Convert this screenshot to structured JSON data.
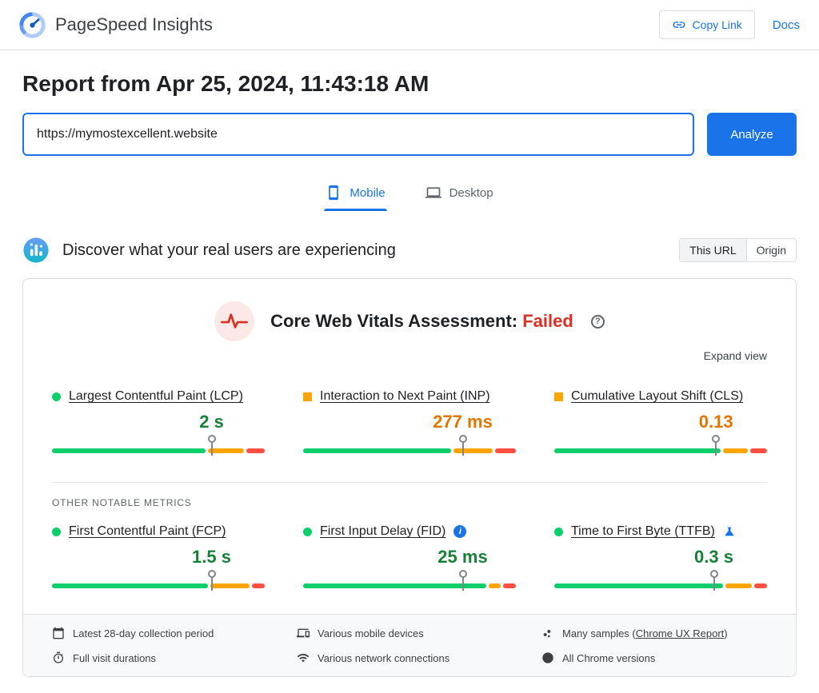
{
  "header": {
    "app_title": "PageSpeed Insights",
    "copy_link": "Copy Link",
    "docs": "Docs"
  },
  "report": {
    "heading": "Report from Apr 25, 2024, 11:43:18 AM",
    "url": "https://mymostexcellent.website",
    "analyze": "Analyze"
  },
  "tabs": {
    "mobile": "Mobile",
    "desktop": "Desktop"
  },
  "field": {
    "heading": "Discover what your real users are experiencing",
    "scope": {
      "this_url": "This URL",
      "origin": "Origin"
    },
    "assessment_title": "Core Web Vitals Assessment:",
    "assessment_verdict": "Failed",
    "expand": "Expand view",
    "other_label": "OTHER NOTABLE METRICS",
    "core_metrics": [
      {
        "name": "Largest Contentful Paint (LCP)",
        "value": "2 s",
        "status": "good",
        "dist": {
          "good": 74,
          "ni": 17,
          "poor": 9
        },
        "marker": 75
      },
      {
        "name": "Interaction to Next Paint (INP)",
        "value": "277 ms",
        "status": "ni",
        "dist": {
          "good": 71,
          "ni": 19,
          "poor": 10
        },
        "marker": 75
      },
      {
        "name": "Cumulative Layout Shift (CLS)",
        "value": "0.13",
        "status": "ni",
        "dist": {
          "good": 80,
          "ni": 12,
          "poor": 8
        },
        "marker": 76
      }
    ],
    "other_metrics": [
      {
        "name": "First Contentful Paint (FCP)",
        "value": "1.5 s",
        "status": "good",
        "dist": {
          "good": 75,
          "ni": 19,
          "poor": 6
        },
        "marker": 75
      },
      {
        "name": "First Input Delay (FID)",
        "value": "25 ms",
        "status": "good",
        "dist": {
          "good": 88,
          "ni": 6,
          "poor": 6
        },
        "marker": 75
      },
      {
        "name": "Time to First Byte (TTFB)",
        "value": "0.3 s",
        "status": "good",
        "dist": {
          "good": 81,
          "ni": 13,
          "poor": 6
        },
        "marker": 75
      }
    ],
    "footer": {
      "collection_period": "Latest 28-day collection period",
      "visit_durations": "Full visit durations",
      "devices": "Various mobile devices",
      "connections": "Various network connections",
      "samples_prefix": "Many samples (",
      "samples_link": "Chrome UX Report",
      "samples_suffix": ")",
      "chrome_versions": "All Chrome versions"
    }
  }
}
